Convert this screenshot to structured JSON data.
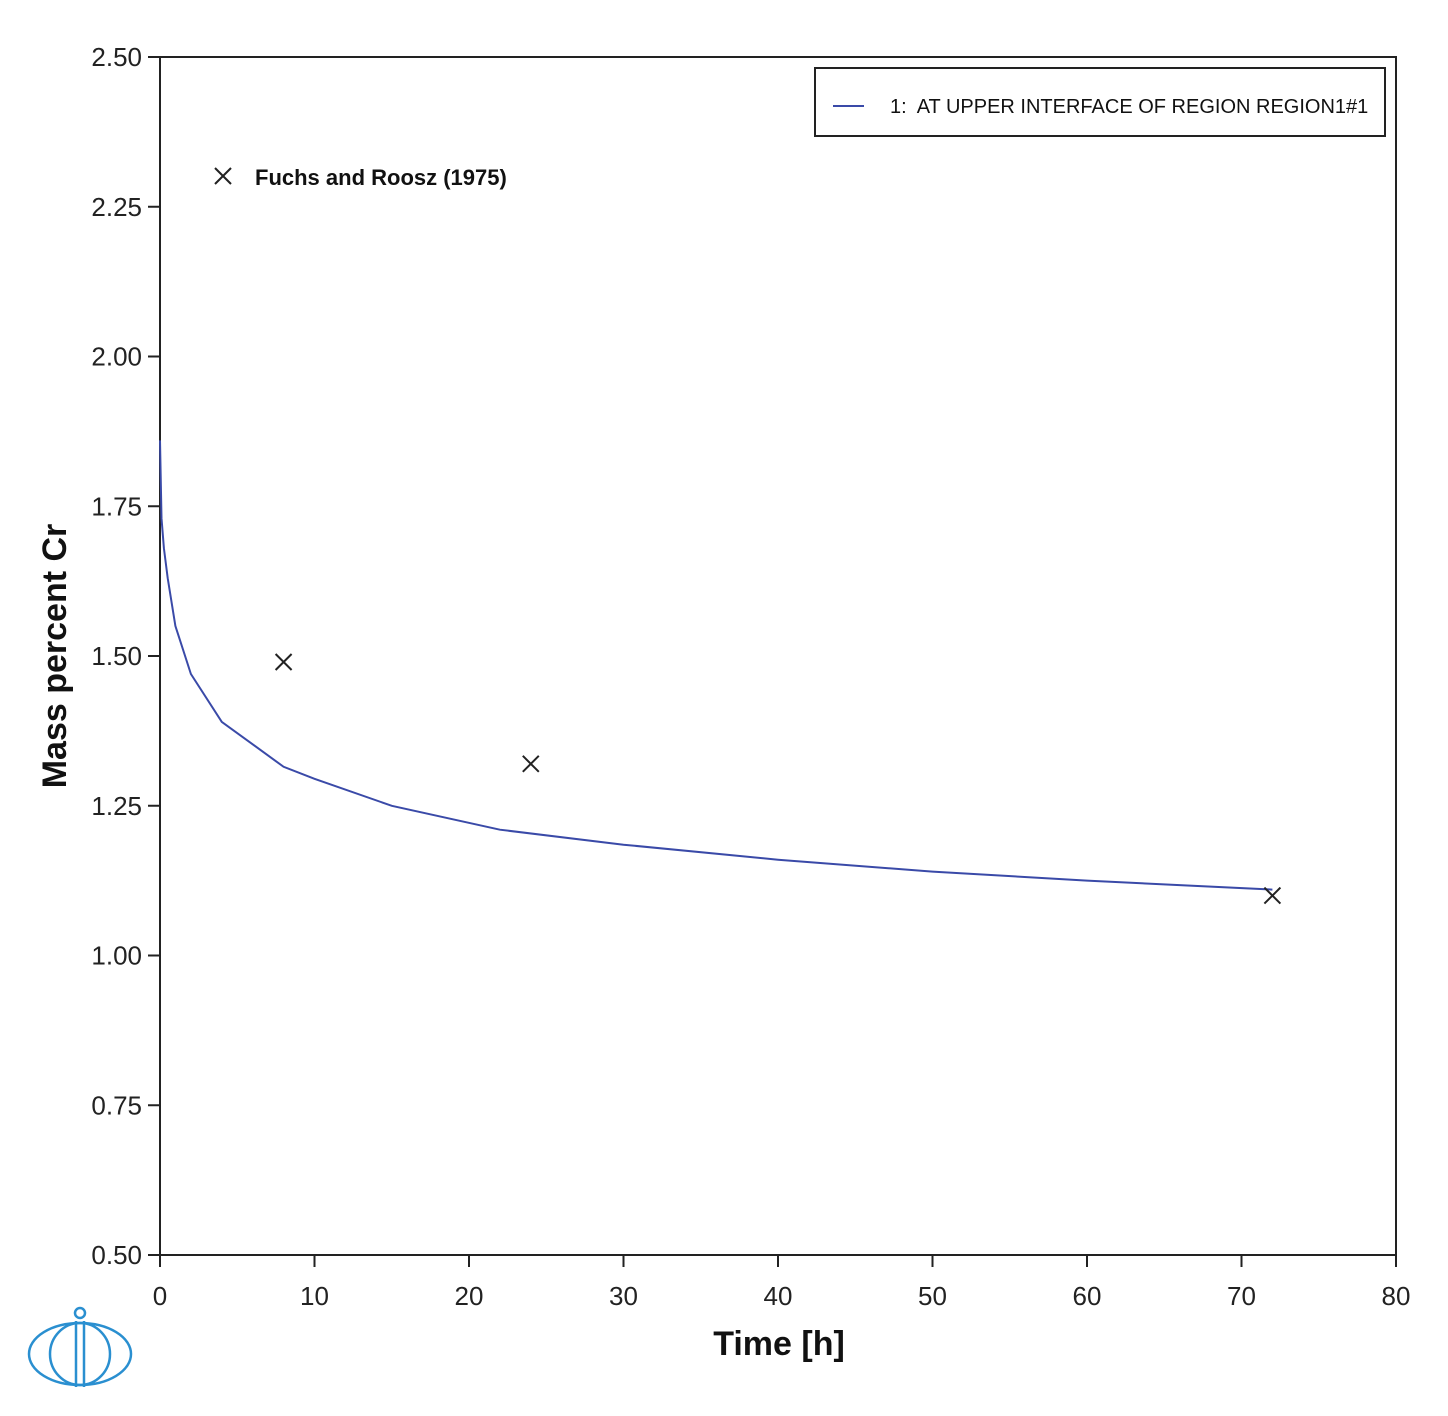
{
  "chart_data": {
    "type": "line",
    "title": "",
    "xlabel": "Time [h]",
    "ylabel": "Mass percent Cr",
    "xlim": [
      0,
      80
    ],
    "ylim": [
      0.5,
      2.5
    ],
    "xticks": [
      "0",
      "10",
      "20",
      "30",
      "40",
      "50",
      "60",
      "70",
      "80"
    ],
    "yticks": [
      "0.50",
      "0.75",
      "1.00",
      "1.25",
      "1.50",
      "1.75",
      "2.00",
      "2.25",
      "2.50"
    ],
    "grid": false,
    "legend_position": "top-right",
    "series": [
      {
        "name": "1:  AT UPPER INTERFACE OF REGION REGION1#1",
        "kind": "line",
        "color": "#3a4aa8",
        "x": [
          0.0,
          0.1,
          0.25,
          0.5,
          1.0,
          2.0,
          4.0,
          8.0,
          10.0,
          15.0,
          22.0,
          30.0,
          40.0,
          50.0,
          60.0,
          72.0
        ],
        "y": [
          1.86,
          1.73,
          1.68,
          1.63,
          1.55,
          1.47,
          1.39,
          1.315,
          1.295,
          1.25,
          1.21,
          1.185,
          1.16,
          1.14,
          1.125,
          1.11
        ]
      },
      {
        "name": "Fuchs and Roosz (1975)",
        "kind": "scatter",
        "marker": "x",
        "color": "#222222",
        "x": [
          8,
          24,
          72
        ],
        "y": [
          1.49,
          1.32,
          1.1
        ]
      }
    ],
    "annotation": {
      "marker": "x",
      "text": "Fuchs and Roosz (1975)"
    }
  }
}
